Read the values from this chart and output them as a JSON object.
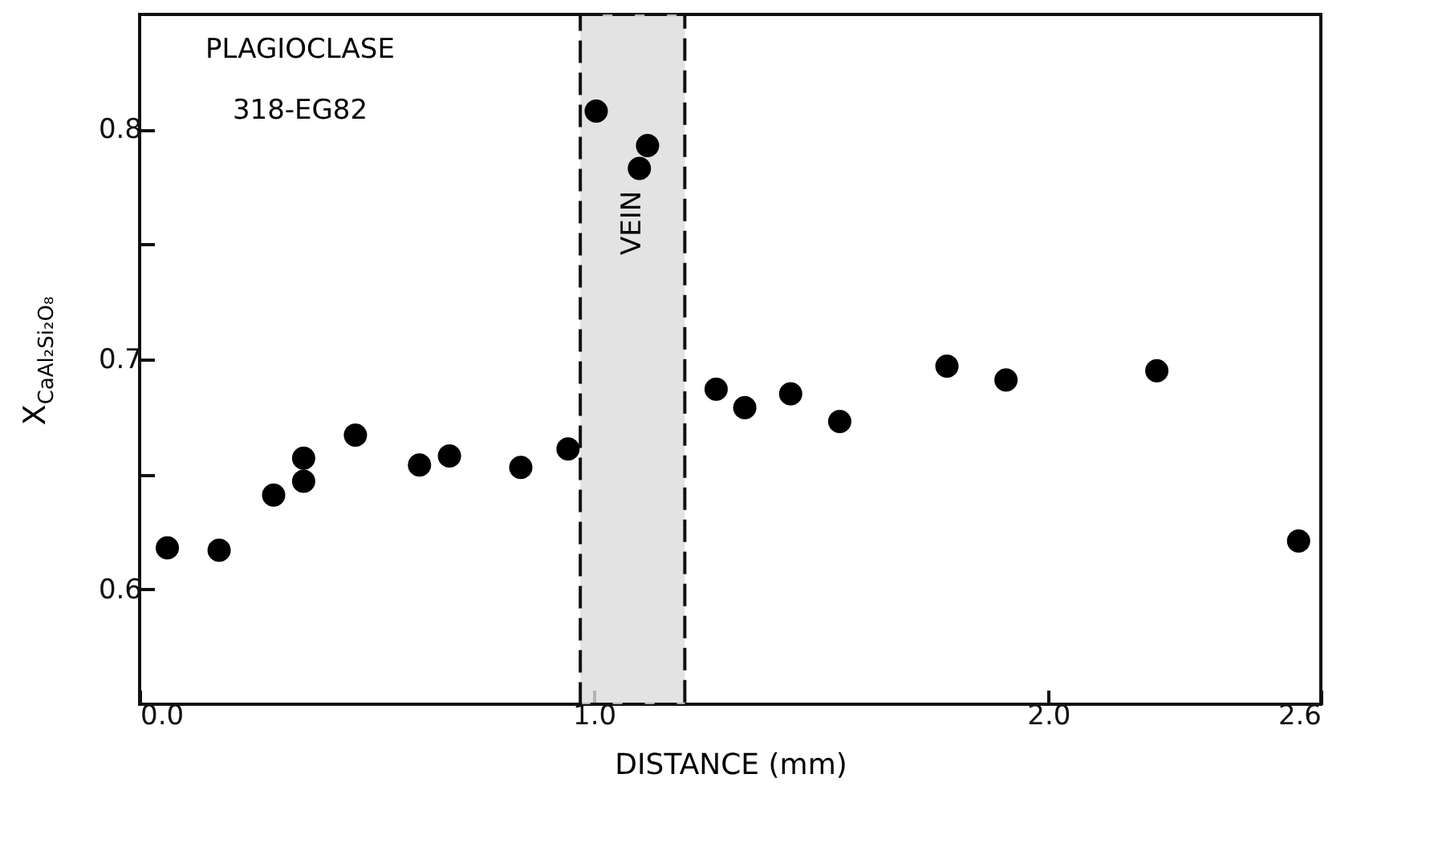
{
  "chart_data": {
    "type": "scatter",
    "xlabel": "DISTANCE (mm)",
    "ylabel": "X$_{CaAl₂Si₂O₈}$",
    "annotations": [
      "PLAGIOCLASE",
      "318-EG82"
    ],
    "x": [
      0.061,
      0.175,
      0.295,
      0.361,
      0.361,
      0.475,
      0.616,
      0.682,
      0.839,
      0.943,
      1.005,
      1.118,
      1.1,
      1.269,
      1.332,
      1.433,
      1.541,
      1.777,
      1.907,
      2.239,
      2.551
    ],
    "series": [
      {
        "color": "#000000",
        "values": [
          0.618,
          0.617,
          0.641,
          0.657,
          0.647,
          0.667,
          0.654,
          0.658,
          0.653,
          0.661,
          0.808,
          0.793,
          0.783,
          0.687,
          0.679,
          0.685,
          0.673,
          0.697,
          0.691,
          0.695,
          0.621
        ]
      }
    ],
    "marker": "circle",
    "bands": [
      {
        "axis": "x",
        "from": 0.97,
        "to": 1.2,
        "label": "VEIN",
        "color": "#dcdcdc"
      }
    ],
    "xlim": [
      0,
      2.6
    ],
    "ylim": [
      0.55,
      0.85
    ],
    "xticks": [
      {
        "value": 0,
        "label": "0.0"
      },
      {
        "value": 1,
        "label": "1.0"
      },
      {
        "value": 2,
        "label": "2.0"
      },
      2.6
    ],
    "yticks": [
      {
        "value": 0.6,
        "label": "0.6"
      },
      {
        "value": 0.65,
        "label": null
      },
      {
        "value": 0.7,
        "label": "0.7"
      },
      {
        "value": 0.75,
        "label": null
      },
      {
        "value": 0.8,
        "label": "0.8"
      }
    ]
  }
}
